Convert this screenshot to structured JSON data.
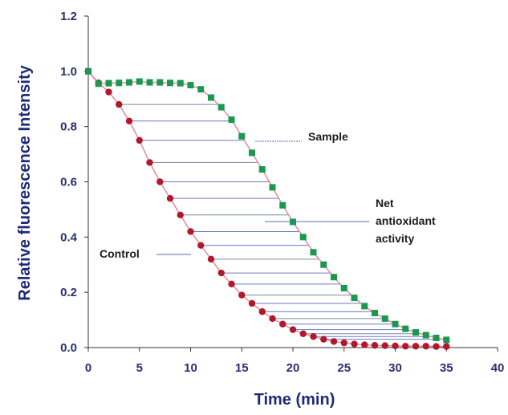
{
  "chart_data": {
    "type": "scatter",
    "xlabel": "Time (min)",
    "ylabel": "Relative fluorescence Intensity",
    "xlim": [
      0,
      40
    ],
    "ylim": [
      0,
      1.2
    ],
    "xticks": [
      "0",
      "5",
      "10",
      "15",
      "20",
      "25",
      "30",
      "35",
      "40"
    ],
    "yticks": [
      "0.0",
      "0.2",
      "0.4",
      "0.6",
      "0.8",
      "1.0",
      "1.2"
    ],
    "grid": false,
    "annotations": [
      "Sample",
      "Net",
      "antioxidant",
      "activity",
      "Control"
    ],
    "series": [
      {
        "name": "Sample",
        "color": "#1a9850",
        "marker": "square",
        "x": [
          0,
          1,
          2,
          3,
          4,
          5,
          6,
          7,
          8,
          9,
          10,
          11,
          12,
          13,
          14,
          15,
          16,
          17,
          18,
          19,
          20,
          21,
          22,
          23,
          24,
          25,
          26,
          27,
          28,
          29,
          30,
          31,
          32,
          33,
          34,
          35
        ],
        "y": [
          1.0,
          0.955,
          0.957,
          0.958,
          0.96,
          0.963,
          0.96,
          0.96,
          0.958,
          0.957,
          0.95,
          0.935,
          0.905,
          0.87,
          0.825,
          0.765,
          0.705,
          0.645,
          0.58,
          0.515,
          0.455,
          0.4,
          0.345,
          0.3,
          0.255,
          0.215,
          0.18,
          0.15,
          0.125,
          0.105,
          0.085,
          0.068,
          0.055,
          0.045,
          0.035,
          0.028
        ]
      },
      {
        "name": "Control",
        "color": "#b2182b",
        "marker": "circle",
        "x": [
          0,
          1,
          2,
          3,
          4,
          5,
          6,
          7,
          8,
          9,
          10,
          11,
          12,
          13,
          14,
          15,
          16,
          17,
          18,
          19,
          20,
          21,
          22,
          23,
          24,
          25,
          26,
          27,
          28,
          29,
          30,
          31,
          32,
          33,
          34,
          35
        ],
        "y": [
          1.0,
          0.958,
          0.925,
          0.88,
          0.82,
          0.75,
          0.67,
          0.6,
          0.54,
          0.48,
          0.42,
          0.37,
          0.32,
          0.27,
          0.23,
          0.19,
          0.16,
          0.13,
          0.105,
          0.085,
          0.065,
          0.05,
          0.04,
          0.03,
          0.022,
          0.017,
          0.013,
          0.01,
          0.008,
          0.007,
          0.006,
          0.005,
          0.005,
          0.005,
          0.004,
          0.004
        ]
      }
    ]
  }
}
